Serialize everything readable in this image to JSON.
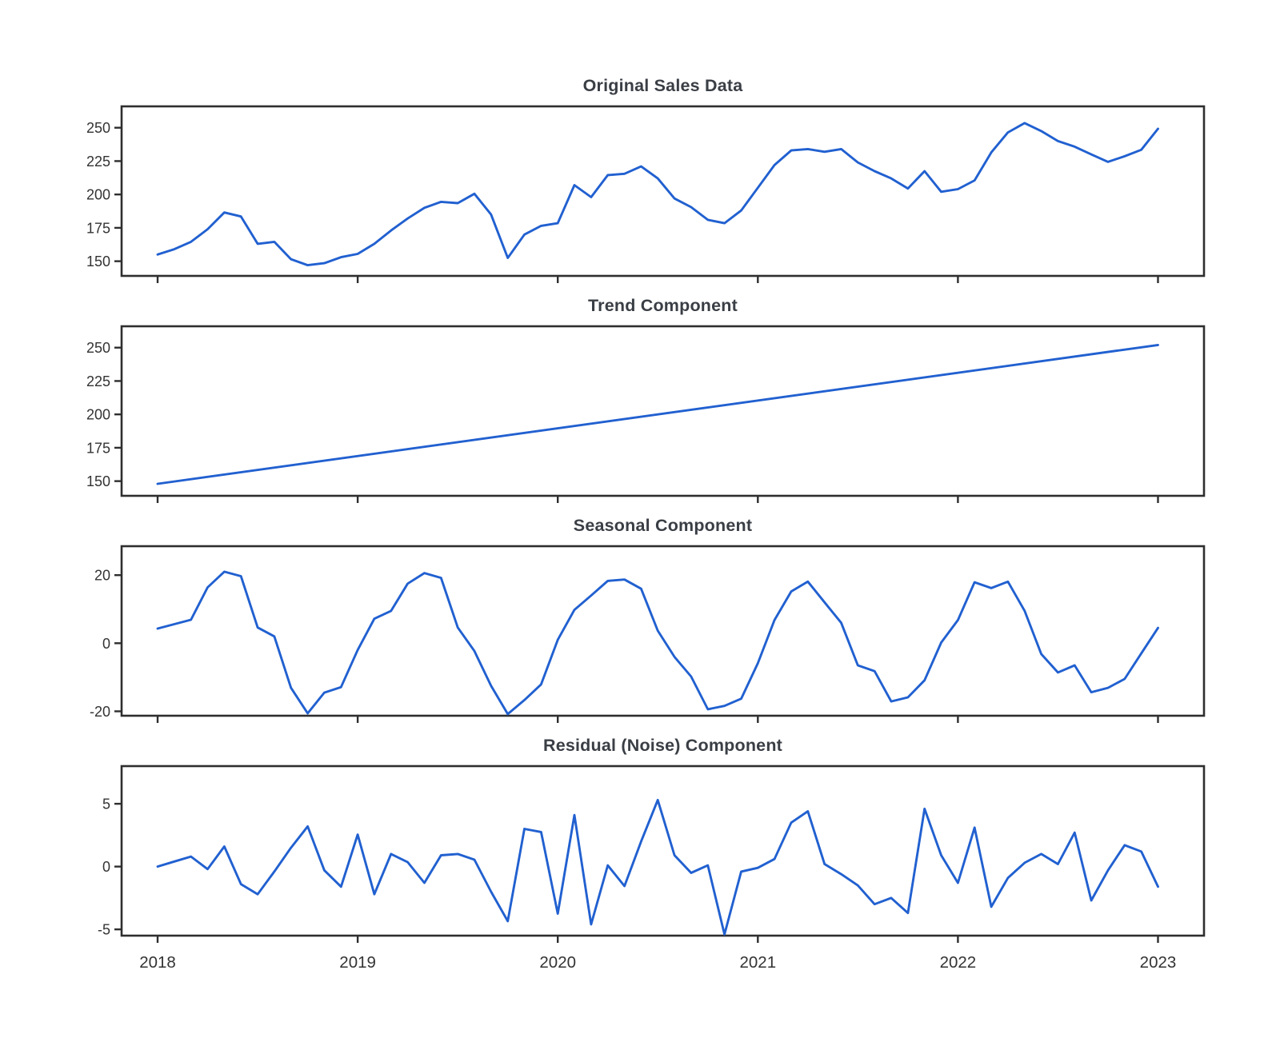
{
  "figure": {
    "background": "#ffffff",
    "line_color": "#2160d0",
    "spine_color": "#2e2e2e",
    "tick_label_color": "#333333",
    "title_color": "#3a3e45"
  },
  "x_axis": {
    "domain": [
      2017.82,
      2023.23
    ],
    "tick_years": [
      2018,
      2019,
      2020,
      2021,
      2022,
      2023
    ],
    "tick_labels": [
      "2018",
      "2019",
      "2020",
      "2021",
      "2022",
      "2023"
    ]
  },
  "chart_data": [
    {
      "type": "line",
      "title": "Original Sales Data",
      "ylabel": "",
      "ylim": [
        139,
        266
      ],
      "yticks": [
        150,
        175,
        200,
        225,
        250
      ],
      "grid": false,
      "legend": "none",
      "x_start": 2018,
      "x_step_years": 0.0833333,
      "show_x_tick_labels": false,
      "values": [
        155,
        159,
        164.5,
        174,
        186.5,
        183.5,
        163,
        164.5,
        151.5,
        147,
        148.5,
        153,
        155.5,
        163,
        173,
        182,
        190,
        194.5,
        193.5,
        200.5,
        185,
        152.5,
        170,
        176.5,
        178.5,
        207,
        198,
        214.5,
        215.5,
        221,
        212,
        197,
        190.5,
        181,
        178.5,
        188,
        205,
        222,
        233,
        234,
        232,
        234,
        224,
        217.5,
        212,
        204.5,
        217.5,
        202,
        204,
        210.5,
        231.5,
        246.5,
        253.5,
        247.5,
        240,
        235.8,
        230,
        224.4,
        228.6,
        233.5,
        249.2
      ]
    },
    {
      "type": "line",
      "title": "Trend Component",
      "ylabel": "",
      "ylim": [
        139,
        266
      ],
      "yticks": [
        150,
        175,
        200,
        225,
        250
      ],
      "grid": false,
      "legend": "none",
      "x": [
        2018,
        2023
      ],
      "show_x_tick_labels": false,
      "values": [
        148,
        252
      ]
    },
    {
      "type": "line",
      "title": "Seasonal Component",
      "ylabel": "",
      "ylim": [
        -21.3,
        28.5
      ],
      "yticks": [
        -20,
        0,
        20
      ],
      "grid": false,
      "legend": "none",
      "x_start": 2018,
      "x_step_years": 0.0833333,
      "show_x_tick_labels": false,
      "values": [
        4.3,
        5.6,
        6.9,
        16.4,
        21.0,
        19.7,
        4.6,
        2.0,
        -13.1,
        -20.6,
        -14.5,
        -12.9,
        -2.0,
        7.2,
        9.5,
        17.5,
        20.6,
        19.2,
        4.6,
        -2.3,
        -12.5,
        -20.8,
        -16.7,
        -12.1,
        1.0,
        9.8,
        14.0,
        18.3,
        18.7,
        16.0,
        3.7,
        -4.0,
        -9.8,
        -19.4,
        -18.4,
        -16.3,
        -5.9,
        6.8,
        15.2,
        18.1,
        12.0,
        6.0,
        -6.5,
        -8.2,
        -17.1,
        -15.9,
        -10.9,
        0.2,
        6.8,
        17.9,
        16.2,
        18.1,
        9.5,
        -3.2,
        -8.6,
        -6.5,
        -14.4,
        -13.1,
        -10.5,
        -3.0,
        4.5
      ]
    },
    {
      "type": "line",
      "title": "Residual (Noise) Component",
      "ylabel": "",
      "ylim": [
        -5.5,
        8.0
      ],
      "yticks": [
        -5,
        0,
        5
      ],
      "grid": false,
      "legend": "none",
      "x_start": 2018,
      "x_step_years": 0.0833333,
      "show_x_tick_labels": true,
      "values": [
        0.0,
        0.4,
        0.8,
        -0.2,
        1.6,
        -1.4,
        -2.2,
        -0.4,
        1.5,
        3.2,
        -0.3,
        -1.6,
        2.55,
        -2.2,
        1.0,
        0.35,
        -1.3,
        0.9,
        1.0,
        0.55,
        -2.0,
        -4.35,
        3.0,
        2.75,
        -3.75,
        4.1,
        -4.6,
        0.1,
        -1.55,
        2.0,
        5.3,
        0.9,
        -0.5,
        0.1,
        -5.4,
        -0.4,
        -0.1,
        0.6,
        3.5,
        4.4,
        0.2,
        -0.6,
        -1.5,
        -3.0,
        -2.5,
        -3.7,
        4.6,
        0.9,
        -1.3,
        3.1,
        -3.2,
        -0.9,
        0.3,
        1.0,
        0.2,
        2.7,
        -2.7,
        -0.3,
        1.7,
        1.2,
        -1.6
      ]
    }
  ]
}
